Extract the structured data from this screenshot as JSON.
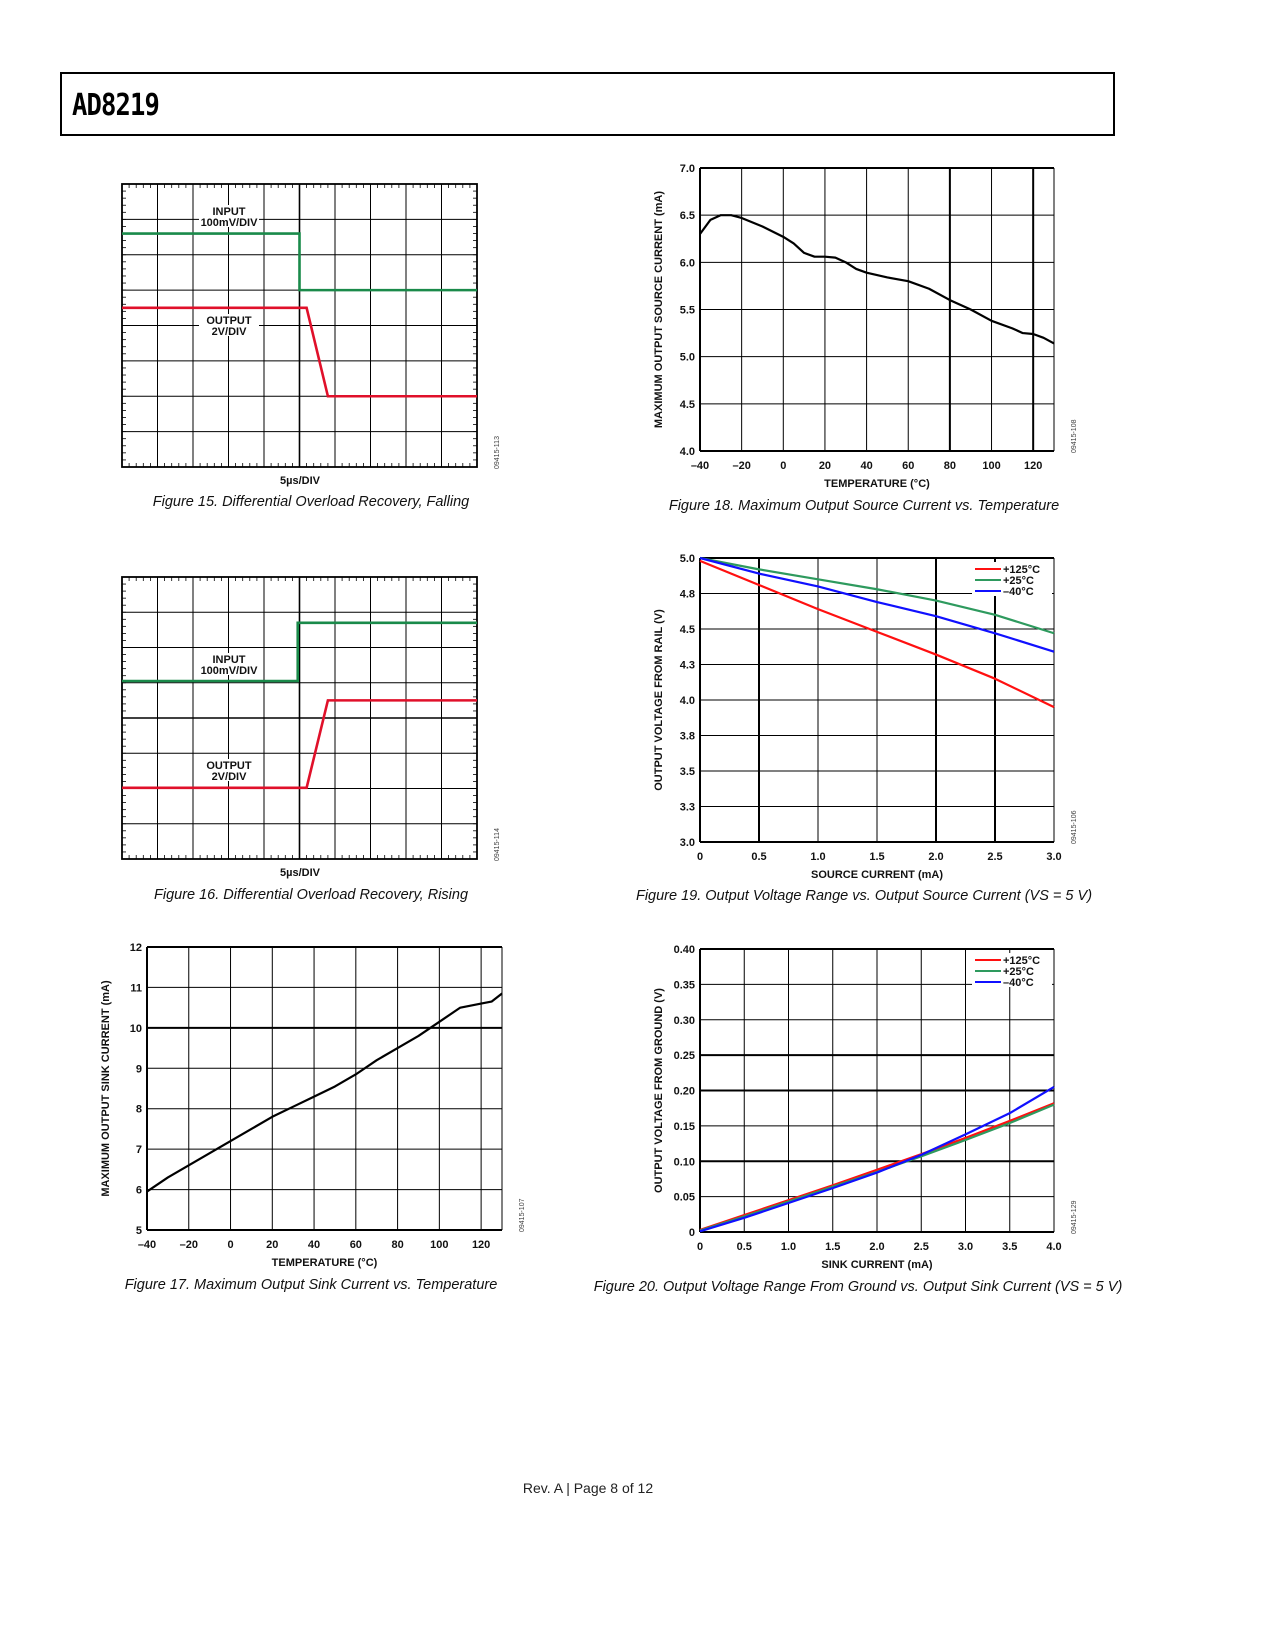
{
  "header": {
    "title": "AD8219"
  },
  "footer": {
    "text": "Rev. A | Page 8 of 12"
  },
  "chart_data": [
    {
      "id": "fig15",
      "type": "line",
      "scope": true,
      "caption": "Figure 15. Differential Overload Recovery, Falling",
      "xlabel": "5µs/DIV",
      "code": "09415-113",
      "divisions": [
        10,
        8
      ],
      "annotations": [
        {
          "text": "INPUT"
        },
        {
          "text": "100mV/DIV"
        },
        {
          "text": "OUTPUT"
        },
        {
          "text": "2V/DIV"
        }
      ],
      "series": [
        {
          "name": "INPUT",
          "color": "#1a8a4a",
          "points": [
            [
              0,
              1.4
            ],
            [
              5.0,
              1.4
            ],
            [
              5.0,
              3.0
            ],
            [
              10,
              3.0
            ]
          ]
        },
        {
          "name": "OUTPUT",
          "color": "#e0102a",
          "points": [
            [
              0,
              3.5
            ],
            [
              5.2,
              3.5
            ],
            [
              5.8,
              6.0
            ],
            [
              10,
              6.0
            ]
          ]
        }
      ]
    },
    {
      "id": "fig16",
      "type": "line",
      "scope": true,
      "caption": "Figure 16. Differential Overload Recovery, Rising",
      "xlabel": "5µs/DIV",
      "code": "09415-114",
      "divisions": [
        10,
        8
      ],
      "annotations": [
        {
          "text": "INPUT"
        },
        {
          "text": "100mV/DIV"
        },
        {
          "text": "OUTPUT"
        },
        {
          "text": "2V/DIV"
        }
      ],
      "series": [
        {
          "name": "INPUT",
          "color": "#1a8a4a",
          "points": [
            [
              0,
              2.95
            ],
            [
              4.95,
              2.95
            ],
            [
              4.95,
              1.3
            ],
            [
              10,
              1.3
            ]
          ]
        },
        {
          "name": "OUTPUT",
          "color": "#e0102a",
          "points": [
            [
              0,
              5.98
            ],
            [
              5.2,
              5.98
            ],
            [
              5.8,
              3.5
            ],
            [
              10,
              3.5
            ]
          ]
        }
      ]
    },
    {
      "id": "fig17",
      "type": "line",
      "caption": "Figure 17. Maximum Output Sink Current vs. Temperature",
      "xlabel": "TEMPERATURE (°C)",
      "ylabel": "MAXIMUM OUTPUT SINK CURRENT (mA)",
      "code": "09415-107",
      "xlim": [
        -40,
        130
      ],
      "ylim": [
        5,
        12
      ],
      "xticks": [
        -40,
        -20,
        0,
        20,
        40,
        60,
        80,
        100,
        120
      ],
      "xtick_labels": [
        "–40",
        "–20",
        "0",
        "20",
        "40",
        "60",
        "80",
        "100",
        "120"
      ],
      "yticks": [
        5,
        6,
        7,
        8,
        9,
        10,
        11,
        12
      ],
      "ytick_labels": [
        "5",
        "6",
        "7",
        "8",
        "9",
        "10",
        "11",
        "12"
      ],
      "series": [
        {
          "name": "sink current",
          "color": "#000000",
          "points": [
            [
              -40,
              5.95
            ],
            [
              -30,
              6.3
            ],
            [
              -20,
              6.6
            ],
            [
              -10,
              6.9
            ],
            [
              0,
              7.2
            ],
            [
              10,
              7.5
            ],
            [
              20,
              7.8
            ],
            [
              30,
              8.05
            ],
            [
              40,
              8.3
            ],
            [
              50,
              8.55
            ],
            [
              60,
              8.85
            ],
            [
              70,
              9.2
            ],
            [
              80,
              9.5
            ],
            [
              90,
              9.8
            ],
            [
              100,
              10.15
            ],
            [
              110,
              10.5
            ],
            [
              120,
              10.6
            ],
            [
              125,
              10.65
            ],
            [
              130,
              10.85
            ]
          ]
        }
      ]
    },
    {
      "id": "fig18",
      "type": "line",
      "caption": "Figure 18. Maximum Output Source Current vs. Temperature",
      "xlabel": "TEMPERATURE (°C)",
      "ylabel": "MAXIMUM OUTPUT SOURCE CURRENT (mA)",
      "code": "09415-108",
      "xlim": [
        -40,
        130
      ],
      "ylim": [
        4.0,
        7.0
      ],
      "xticks": [
        -40,
        -20,
        0,
        20,
        40,
        60,
        80,
        100,
        120
      ],
      "xtick_labels": [
        "–40",
        "–20",
        "0",
        "20",
        "40",
        "60",
        "80",
        "100",
        "120"
      ],
      "yticks": [
        4.0,
        4.5,
        5.0,
        5.5,
        6.0,
        6.5,
        7.0
      ],
      "ytick_labels": [
        "4.0",
        "4.5",
        "5.0",
        "5.5",
        "6.0",
        "6.5",
        "7.0"
      ],
      "series": [
        {
          "name": "source current",
          "color": "#000000",
          "points": [
            [
              -40,
              6.3
            ],
            [
              -35,
              6.45
            ],
            [
              -30,
              6.5
            ],
            [
              -25,
              6.5
            ],
            [
              -20,
              6.47
            ],
            [
              -10,
              6.38
            ],
            [
              0,
              6.27
            ],
            [
              5,
              6.2
            ],
            [
              10,
              6.1
            ],
            [
              15,
              6.06
            ],
            [
              20,
              6.06
            ],
            [
              25,
              6.05
            ],
            [
              30,
              6.0
            ],
            [
              35,
              5.93
            ],
            [
              40,
              5.89
            ],
            [
              50,
              5.84
            ],
            [
              60,
              5.8
            ],
            [
              70,
              5.72
            ],
            [
              80,
              5.6
            ],
            [
              90,
              5.5
            ],
            [
              100,
              5.38
            ],
            [
              110,
              5.3
            ],
            [
              115,
              5.25
            ],
            [
              120,
              5.24
            ],
            [
              125,
              5.2
            ],
            [
              130,
              5.14
            ]
          ]
        }
      ]
    },
    {
      "id": "fig19",
      "type": "line",
      "caption": "Figure 19. Output Voltage Range vs. Output Source Current (VS = 5 V)",
      "xlabel": "SOURCE CURRENT (mA)",
      "ylabel": "OUTPUT VOLTAGE FROM RAIL (V)",
      "code": "09415-106",
      "xlim": [
        0,
        3.0
      ],
      "ylim": [
        3.0,
        5.0
      ],
      "xticks": [
        0,
        0.5,
        1.0,
        1.5,
        2.0,
        2.5,
        3.0
      ],
      "xtick_labels": [
        "0",
        "0.5",
        "1.0",
        "1.5",
        "2.0",
        "2.5",
        "3.0"
      ],
      "yticks": [
        3.0,
        3.25,
        3.5,
        3.75,
        4.0,
        4.25,
        4.5,
        4.75,
        5.0
      ],
      "ytick_labels": [
        "3.0",
        "3.3",
        "3.5",
        "3.8",
        "4.0",
        "4.3",
        "4.5",
        "4.8",
        "5.0"
      ],
      "legend": "top-right",
      "series": [
        {
          "name": "+125°C",
          "color": "#ff1010",
          "points": [
            [
              0,
              4.98
            ],
            [
              0.5,
              4.81
            ],
            [
              1.0,
              4.64
            ],
            [
              1.5,
              4.48
            ],
            [
              2.0,
              4.32
            ],
            [
              2.5,
              4.15
            ],
            [
              3.0,
              3.95
            ]
          ]
        },
        {
          "name": "+25°C",
          "color": "#2e9a5e",
          "points": [
            [
              0,
              5.0
            ],
            [
              0.5,
              4.92
            ],
            [
              1.0,
              4.85
            ],
            [
              1.5,
              4.78
            ],
            [
              2.0,
              4.7
            ],
            [
              2.5,
              4.6
            ],
            [
              3.0,
              4.47
            ]
          ]
        },
        {
          "name": "–40°C",
          "color": "#1010ff",
          "points": [
            [
              0,
              5.0
            ],
            [
              0.5,
              4.89
            ],
            [
              1.0,
              4.8
            ],
            [
              1.5,
              4.69
            ],
            [
              2.0,
              4.59
            ],
            [
              2.5,
              4.47
            ],
            [
              3.0,
              4.34
            ]
          ]
        }
      ]
    },
    {
      "id": "fig20",
      "type": "line",
      "caption": "Figure 20. Output Voltage Range From Ground vs. Output Sink Current (VS = 5 V)",
      "xlabel": "SINK CURRENT (mA)",
      "ylabel": "OUTPUT VOLTAGE FROM GROUND (V)",
      "code": "09415-129",
      "xlim": [
        0,
        4.0
      ],
      "ylim": [
        0,
        0.4
      ],
      "xticks": [
        0,
        0.5,
        1.0,
        1.5,
        2.0,
        2.5,
        3.0,
        3.5,
        4.0
      ],
      "xtick_labels": [
        "0",
        "0.5",
        "1.0",
        "1.5",
        "2.0",
        "2.5",
        "3.0",
        "3.5",
        "4.0"
      ],
      "yticks": [
        0,
        0.05,
        0.1,
        0.15,
        0.2,
        0.25,
        0.3,
        0.35,
        0.4
      ],
      "ytick_labels": [
        "0",
        "0.05",
        "0.10",
        "0.15",
        "0.20",
        "0.25",
        "0.30",
        "0.35",
        "0.40"
      ],
      "legend": "top-right",
      "series": [
        {
          "name": "+125°C",
          "color": "#ff1010",
          "points": [
            [
              0,
              0.003
            ],
            [
              0.5,
              0.024
            ],
            [
              1.0,
              0.045
            ],
            [
              1.5,
              0.066
            ],
            [
              2.0,
              0.088
            ],
            [
              2.5,
              0.11
            ],
            [
              3.0,
              0.133
            ],
            [
              3.5,
              0.157
            ],
            [
              4.0,
              0.182
            ]
          ]
        },
        {
          "name": "+25°C",
          "color": "#2e9a5e",
          "points": [
            [
              0,
              0.002
            ],
            [
              0.5,
              0.022
            ],
            [
              1.0,
              0.043
            ],
            [
              1.5,
              0.064
            ],
            [
              2.0,
              0.085
            ],
            [
              2.5,
              0.107
            ],
            [
              3.0,
              0.13
            ],
            [
              3.5,
              0.154
            ],
            [
              4.0,
              0.18
            ]
          ]
        },
        {
          "name": "–40°C",
          "color": "#1010ff",
          "points": [
            [
              0,
              0.001
            ],
            [
              0.5,
              0.02
            ],
            [
              1.0,
              0.041
            ],
            [
              1.5,
              0.062
            ],
            [
              2.0,
              0.084
            ],
            [
              2.5,
              0.109
            ],
            [
              3.0,
              0.138
            ],
            [
              3.5,
              0.168
            ],
            [
              4.0,
              0.205
            ]
          ]
        }
      ]
    }
  ]
}
